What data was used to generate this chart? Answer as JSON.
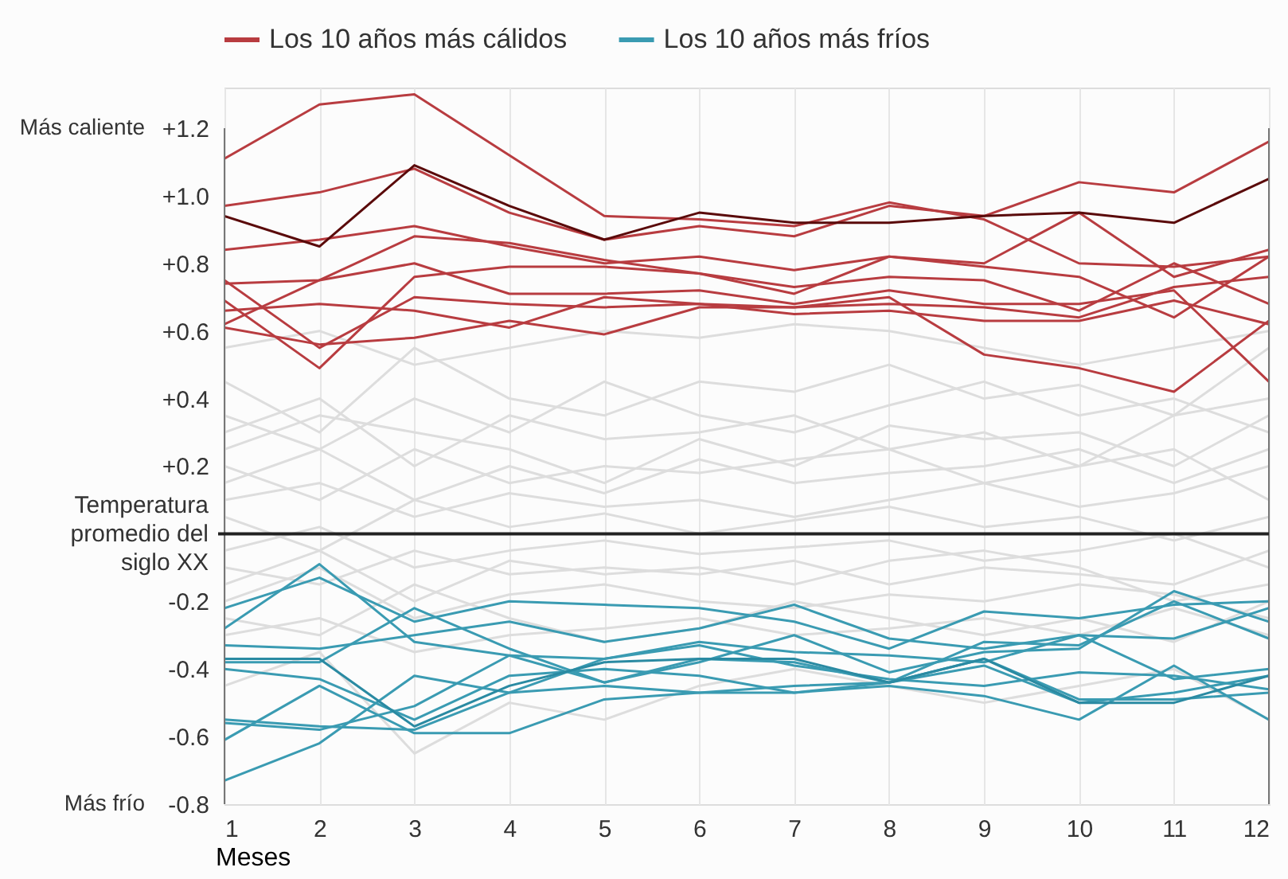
{
  "chart_data": {
    "type": "line",
    "xlabel": "Meses",
    "x": [
      1,
      2,
      3,
      4,
      5,
      6,
      7,
      8,
      9,
      10,
      11,
      12
    ],
    "xlim": [
      1,
      12
    ],
    "xticks": [
      1,
      2,
      3,
      4,
      5,
      6,
      7,
      8,
      9,
      10,
      11,
      12
    ],
    "ylim": [
      -0.8,
      1.32
    ],
    "yticks": [
      {
        "value": 1.2,
        "label": "+1.2"
      },
      {
        "value": 1.0,
        "label": "+1.0"
      },
      {
        "value": 0.8,
        "label": "+0.8"
      },
      {
        "value": 0.6,
        "label": "+0.6"
      },
      {
        "value": 0.4,
        "label": "+0.4"
      },
      {
        "value": 0.2,
        "label": "+0.2"
      },
      {
        "value": 0,
        "label": "Temperatura promedio del siglo XX"
      },
      -0.2,
      -0.4,
      -0.6,
      -0.8
    ],
    "annotations": [
      "Más caliente",
      "Más frío"
    ],
    "grid": "x",
    "legend": "top",
    "line_style": "solid",
    "marker": "none",
    "ref_lines": [
      {
        "axis": "y",
        "value": 0,
        "label": null,
        "color": "#222222"
      }
    ],
    "series": [
      {
        "color": "#dddddd",
        "values": [
          0.45,
          0.3,
          0.55,
          0.4,
          0.35,
          0.45,
          0.42,
          0.5,
          0.4,
          0.44,
          0.35,
          0.55
        ]
      },
      {
        "color": "#dddddd",
        "values": [
          0.3,
          0.4,
          0.2,
          0.35,
          0.28,
          0.3,
          0.35,
          0.25,
          0.3,
          0.2,
          0.35,
          0.4
        ]
      },
      {
        "color": "#dddddd",
        "values": [
          0.2,
          0.1,
          0.25,
          0.15,
          0.2,
          0.18,
          0.22,
          0.25,
          0.15,
          0.2,
          0.25,
          0.1
        ]
      },
      {
        "color": "#dddddd",
        "values": [
          0.1,
          0.15,
          0.05,
          0.12,
          0.08,
          0.1,
          0.05,
          0.1,
          0.15,
          0.08,
          0.12,
          0.2
        ]
      },
      {
        "color": "#dddddd",
        "values": [
          0.05,
          -0.05,
          0.1,
          0.02,
          0.06,
          0.0,
          0.04,
          0.08,
          0.02,
          0.05,
          -0.02,
          0.05
        ]
      },
      {
        "color": "#dddddd",
        "values": [
          -0.05,
          0.02,
          -0.1,
          -0.05,
          -0.02,
          -0.06,
          -0.04,
          -0.02,
          -0.08,
          -0.05,
          0.0,
          -0.1
        ]
      },
      {
        "color": "#dddddd",
        "values": [
          -0.1,
          -0.15,
          -0.05,
          -0.12,
          -0.1,
          -0.12,
          -0.08,
          -0.15,
          -0.1,
          -0.12,
          -0.15,
          -0.05
        ]
      },
      {
        "color": "#dddddd",
        "values": [
          -0.2,
          -0.1,
          -0.25,
          -0.18,
          -0.15,
          -0.2,
          -0.22,
          -0.18,
          -0.2,
          -0.15,
          -0.18,
          -0.25
        ]
      },
      {
        "color": "#dddddd",
        "values": [
          -0.3,
          -0.25,
          -0.35,
          -0.3,
          -0.28,
          -0.25,
          -0.3,
          -0.28,
          -0.25,
          -0.3,
          -0.22,
          -0.3
        ]
      },
      {
        "color": "#dddddd",
        "values": [
          -0.45,
          -0.35,
          -0.65,
          -0.5,
          -0.55,
          -0.45,
          -0.4,
          -0.45,
          -0.5,
          -0.45,
          -0.4,
          -0.55
        ]
      },
      {
        "color": "#dddddd",
        "values": [
          0.55,
          0.6,
          0.5,
          0.55,
          0.6,
          0.58,
          0.62,
          0.6,
          0.55,
          0.5,
          0.55,
          0.6
        ]
      },
      {
        "color": "#dddddd",
        "values": [
          0.35,
          0.25,
          0.4,
          0.3,
          0.45,
          0.35,
          0.3,
          0.38,
          0.45,
          0.35,
          0.4,
          0.3
        ]
      },
      {
        "color": "#dddddd",
        "values": [
          0.15,
          0.25,
          0.1,
          0.2,
          0.12,
          0.22,
          0.15,
          0.18,
          0.2,
          0.25,
          0.15,
          0.25
        ]
      },
      {
        "color": "#dddddd",
        "values": [
          -0.15,
          -0.05,
          -0.2,
          -0.08,
          -0.12,
          -0.1,
          -0.15,
          -0.08,
          -0.05,
          -0.1,
          -0.2,
          -0.15
        ]
      },
      {
        "color": "#dddddd",
        "values": [
          0.25,
          0.35,
          0.3,
          0.25,
          0.15,
          0.28,
          0.2,
          0.32,
          0.28,
          0.3,
          0.2,
          0.35
        ]
      },
      {
        "color": "#dddddd",
        "values": [
          -0.25,
          -0.3,
          -0.15,
          -0.25,
          -0.32,
          -0.28,
          -0.2,
          -0.25,
          -0.3,
          -0.25,
          -0.32,
          -0.2
        ]
      },
      {
        "name": "Los 10 años más cálidos",
        "color": "#b83c40",
        "values": [
          1.11,
          1.27,
          1.3,
          1.12,
          0.94,
          0.93,
          0.91,
          0.98,
          0.93,
          0.8,
          0.79,
          0.82
        ]
      },
      {
        "color": "#b83c40",
        "values": [
          0.97,
          1.01,
          1.08,
          0.95,
          0.87,
          0.91,
          0.88,
          0.97,
          0.94,
          1.04,
          1.01,
          1.16
        ]
      },
      {
        "color": "#b83c40",
        "values": [
          0.84,
          0.87,
          0.91,
          0.85,
          0.8,
          0.82,
          0.78,
          0.82,
          0.8,
          0.95,
          0.76,
          0.84
        ]
      },
      {
        "color": "#b83c40",
        "values": [
          0.74,
          0.75,
          0.88,
          0.86,
          0.81,
          0.77,
          0.71,
          0.82,
          0.79,
          0.76,
          0.64,
          0.82
        ]
      },
      {
        "color": "#b83c40",
        "values": [
          0.69,
          0.49,
          0.76,
          0.79,
          0.79,
          0.77,
          0.73,
          0.76,
          0.75,
          0.66,
          0.8,
          0.68
        ]
      },
      {
        "color": "#b83c40",
        "values": [
          0.61,
          0.56,
          0.58,
          0.63,
          0.59,
          0.67,
          0.67,
          0.7,
          0.53,
          0.49,
          0.42,
          0.63
        ]
      },
      {
        "color": "#b83c40",
        "values": [
          0.62,
          0.75,
          0.8,
          0.71,
          0.71,
          0.72,
          0.68,
          0.72,
          0.68,
          0.68,
          0.72,
          0.45
        ]
      },
      {
        "color": "#b83c40",
        "values": [
          0.66,
          0.68,
          0.66,
          0.61,
          0.7,
          0.68,
          0.65,
          0.66,
          0.63,
          0.63,
          0.69,
          0.62
        ]
      },
      {
        "color": "#b83c40",
        "values": [
          0.75,
          0.55,
          0.7,
          0.68,
          0.67,
          0.68,
          0.67,
          0.68,
          0.67,
          0.64,
          0.73,
          0.76
        ]
      },
      {
        "color": "#5a0a0a",
        "values": [
          0.94,
          0.85,
          1.09,
          0.97,
          0.87,
          0.95,
          0.92,
          0.92,
          0.94,
          0.95,
          0.92,
          1.05
        ]
      },
      {
        "name": "Los 10 años más fríos",
        "color": "#3a9bb2",
        "values": [
          -0.28,
          -0.09,
          -0.32,
          -0.36,
          -0.44,
          -0.38,
          -0.3,
          -0.41,
          -0.35,
          -0.34,
          -0.17,
          -0.26
        ]
      },
      {
        "color": "#3a9bb2",
        "values": [
          -0.22,
          -0.13,
          -0.26,
          -0.2,
          -0.21,
          -0.22,
          -0.26,
          -0.34,
          -0.23,
          -0.25,
          -0.21,
          -0.2
        ]
      },
      {
        "color": "#3a9bb2",
        "values": [
          -0.33,
          -0.34,
          -0.3,
          -0.26,
          -0.32,
          -0.28,
          -0.21,
          -0.31,
          -0.34,
          -0.3,
          -0.43,
          -0.4
        ]
      },
      {
        "color": "#3a9bb2",
        "values": [
          -0.38,
          -0.38,
          -0.22,
          -0.34,
          -0.44,
          -0.37,
          -0.38,
          -0.44,
          -0.32,
          -0.33,
          -0.2,
          -0.31
        ]
      },
      {
        "color": "#3a9bb2",
        "values": [
          -0.55,
          -0.57,
          -0.58,
          -0.47,
          -0.37,
          -0.32,
          -0.35,
          -0.36,
          -0.38,
          -0.3,
          -0.31,
          -0.22
        ]
      },
      {
        "color": "#3a9bb2",
        "values": [
          -0.56,
          -0.58,
          -0.51,
          -0.36,
          -0.37,
          -0.33,
          -0.39,
          -0.43,
          -0.45,
          -0.41,
          -0.42,
          -0.46
        ]
      },
      {
        "color": "#3a9bb2",
        "values": [
          -0.61,
          -0.45,
          -0.59,
          -0.59,
          -0.49,
          -0.47,
          -0.47,
          -0.45,
          -0.48,
          -0.55,
          -0.39,
          -0.55
        ]
      },
      {
        "color": "#3a9bb2",
        "values": [
          -0.73,
          -0.62,
          -0.42,
          -0.47,
          -0.45,
          -0.47,
          -0.45,
          -0.44,
          -0.39,
          -0.5,
          -0.47,
          -0.42
        ]
      },
      {
        "color": "#3a9bb2",
        "values": [
          -0.4,
          -0.43,
          -0.55,
          -0.42,
          -0.4,
          -0.42,
          -0.47,
          -0.44,
          -0.37,
          -0.49,
          -0.49,
          -0.47
        ]
      },
      {
        "color": "#2a8aa2",
        "values": [
          -0.37,
          -0.37,
          -0.57,
          -0.45,
          -0.38,
          -0.37,
          -0.37,
          -0.44,
          -0.37,
          -0.5,
          -0.5,
          -0.42
        ]
      }
    ]
  }
}
